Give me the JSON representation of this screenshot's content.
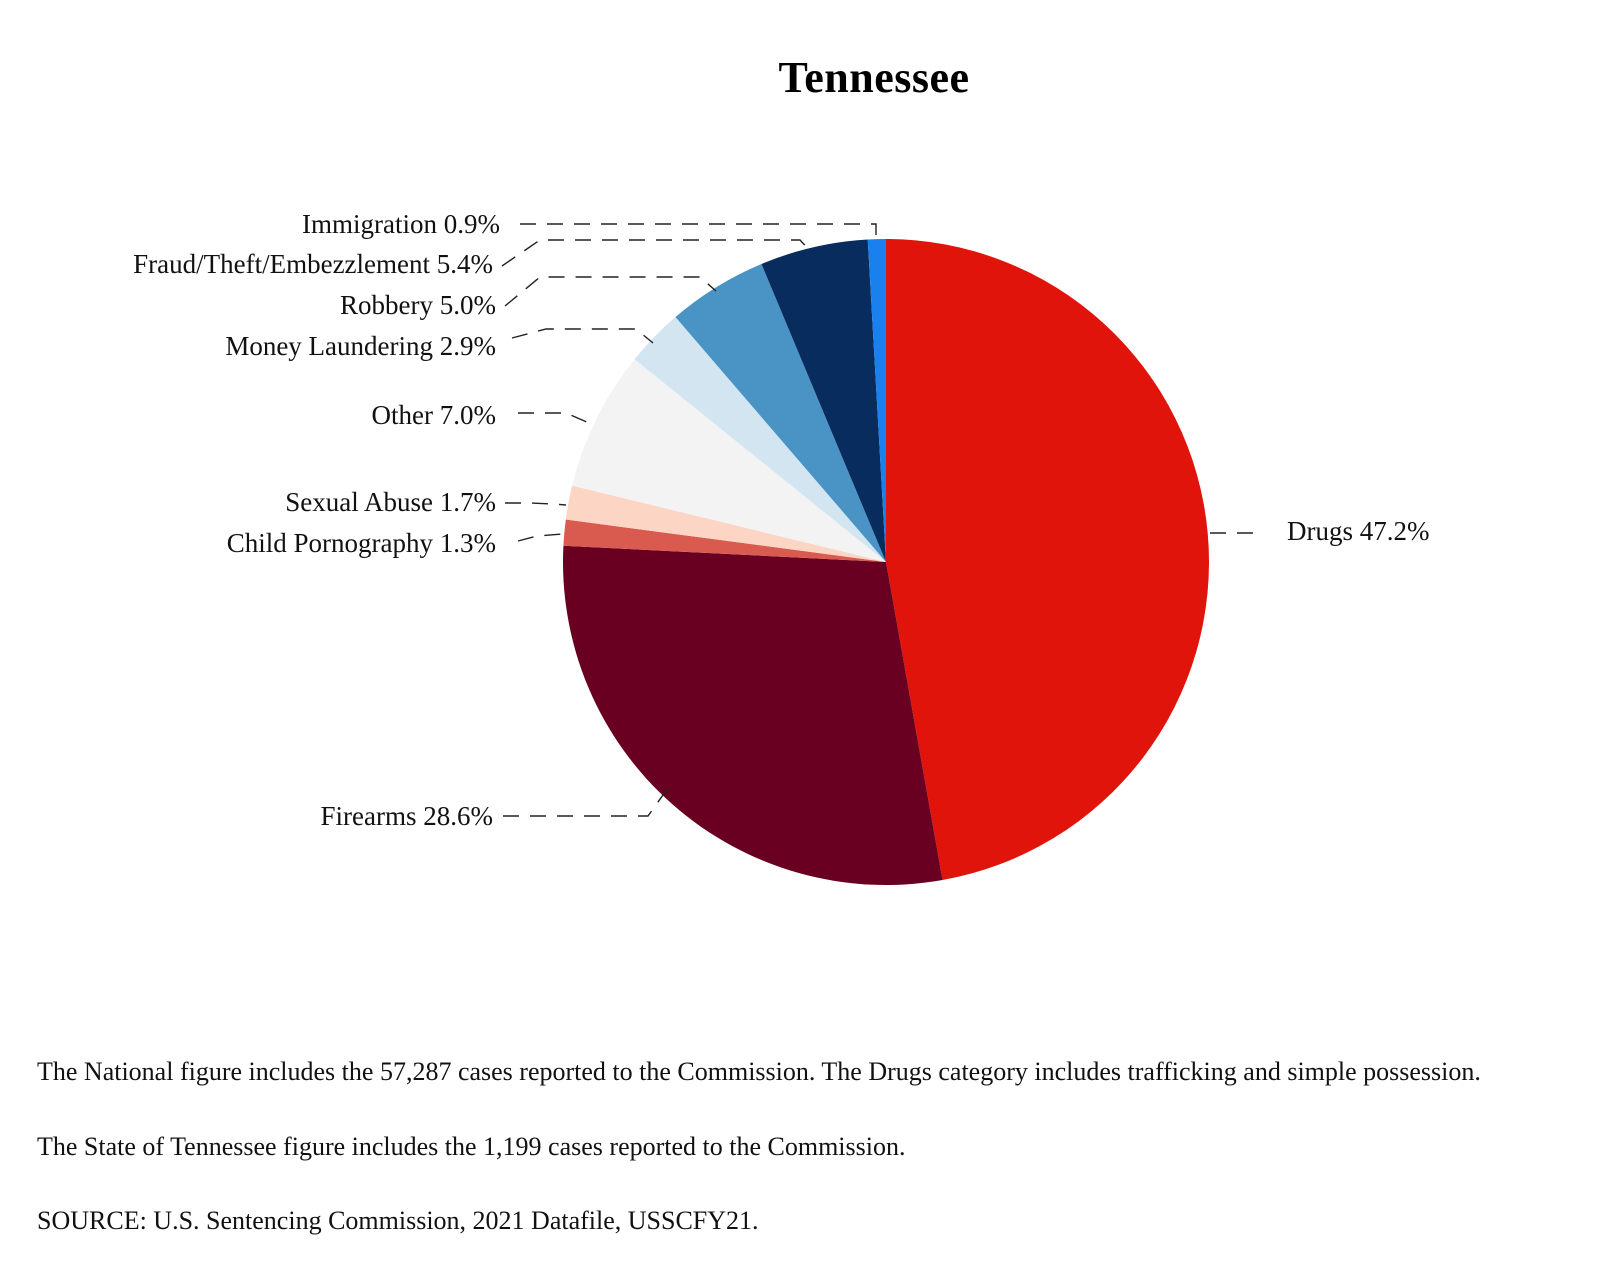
{
  "chart_data": {
    "type": "pie",
    "title": "Tennessee",
    "slices": [
      {
        "label": "Drugs",
        "value": 47.2,
        "display": "Drugs 47.2%",
        "color": "#E0140A"
      },
      {
        "label": "Firearms",
        "value": 28.6,
        "display": "Firearms 28.6%",
        "color": "#690021"
      },
      {
        "label": "Child Pornography",
        "value": 1.3,
        "display": "Child Pornography 1.3%",
        "color": "#D95A4E"
      },
      {
        "label": "Sexual Abuse",
        "value": 1.7,
        "display": "Sexual Abuse 1.7%",
        "color": "#FCD5C4"
      },
      {
        "label": "Other",
        "value": 7.0,
        "display": "Other 7.0%",
        "color": "#F3F3F3"
      },
      {
        "label": "Money Laundering",
        "value": 2.9,
        "display": "Money Laundering 2.9%",
        "color": "#D4E5F2"
      },
      {
        "label": "Robbery",
        "value": 5.0,
        "display": "Robbery 5.0%",
        "color": "#4993C5"
      },
      {
        "label": "Fraud/Theft/Embezzlement",
        "value": 5.4,
        "display": "Fraud/Theft/Embezzlement 5.4%",
        "color": "#082C5E"
      },
      {
        "label": "Immigration",
        "value": 0.9,
        "display": "Immigration 0.9%",
        "color": "#1A80EE"
      }
    ],
    "start_angle_deg": 0,
    "direction": "clockwise"
  },
  "notes": {
    "national": "The National figure includes the 57,287 cases reported to the Commission. The Drugs category includes trafficking and simple possession.",
    "state": "The State of Tennessee figure includes the 1,199 cases reported to the Commission.",
    "source": "SOURCE: U.S. Sentencing Commission, 2021 Datafile, USSCFY21."
  }
}
